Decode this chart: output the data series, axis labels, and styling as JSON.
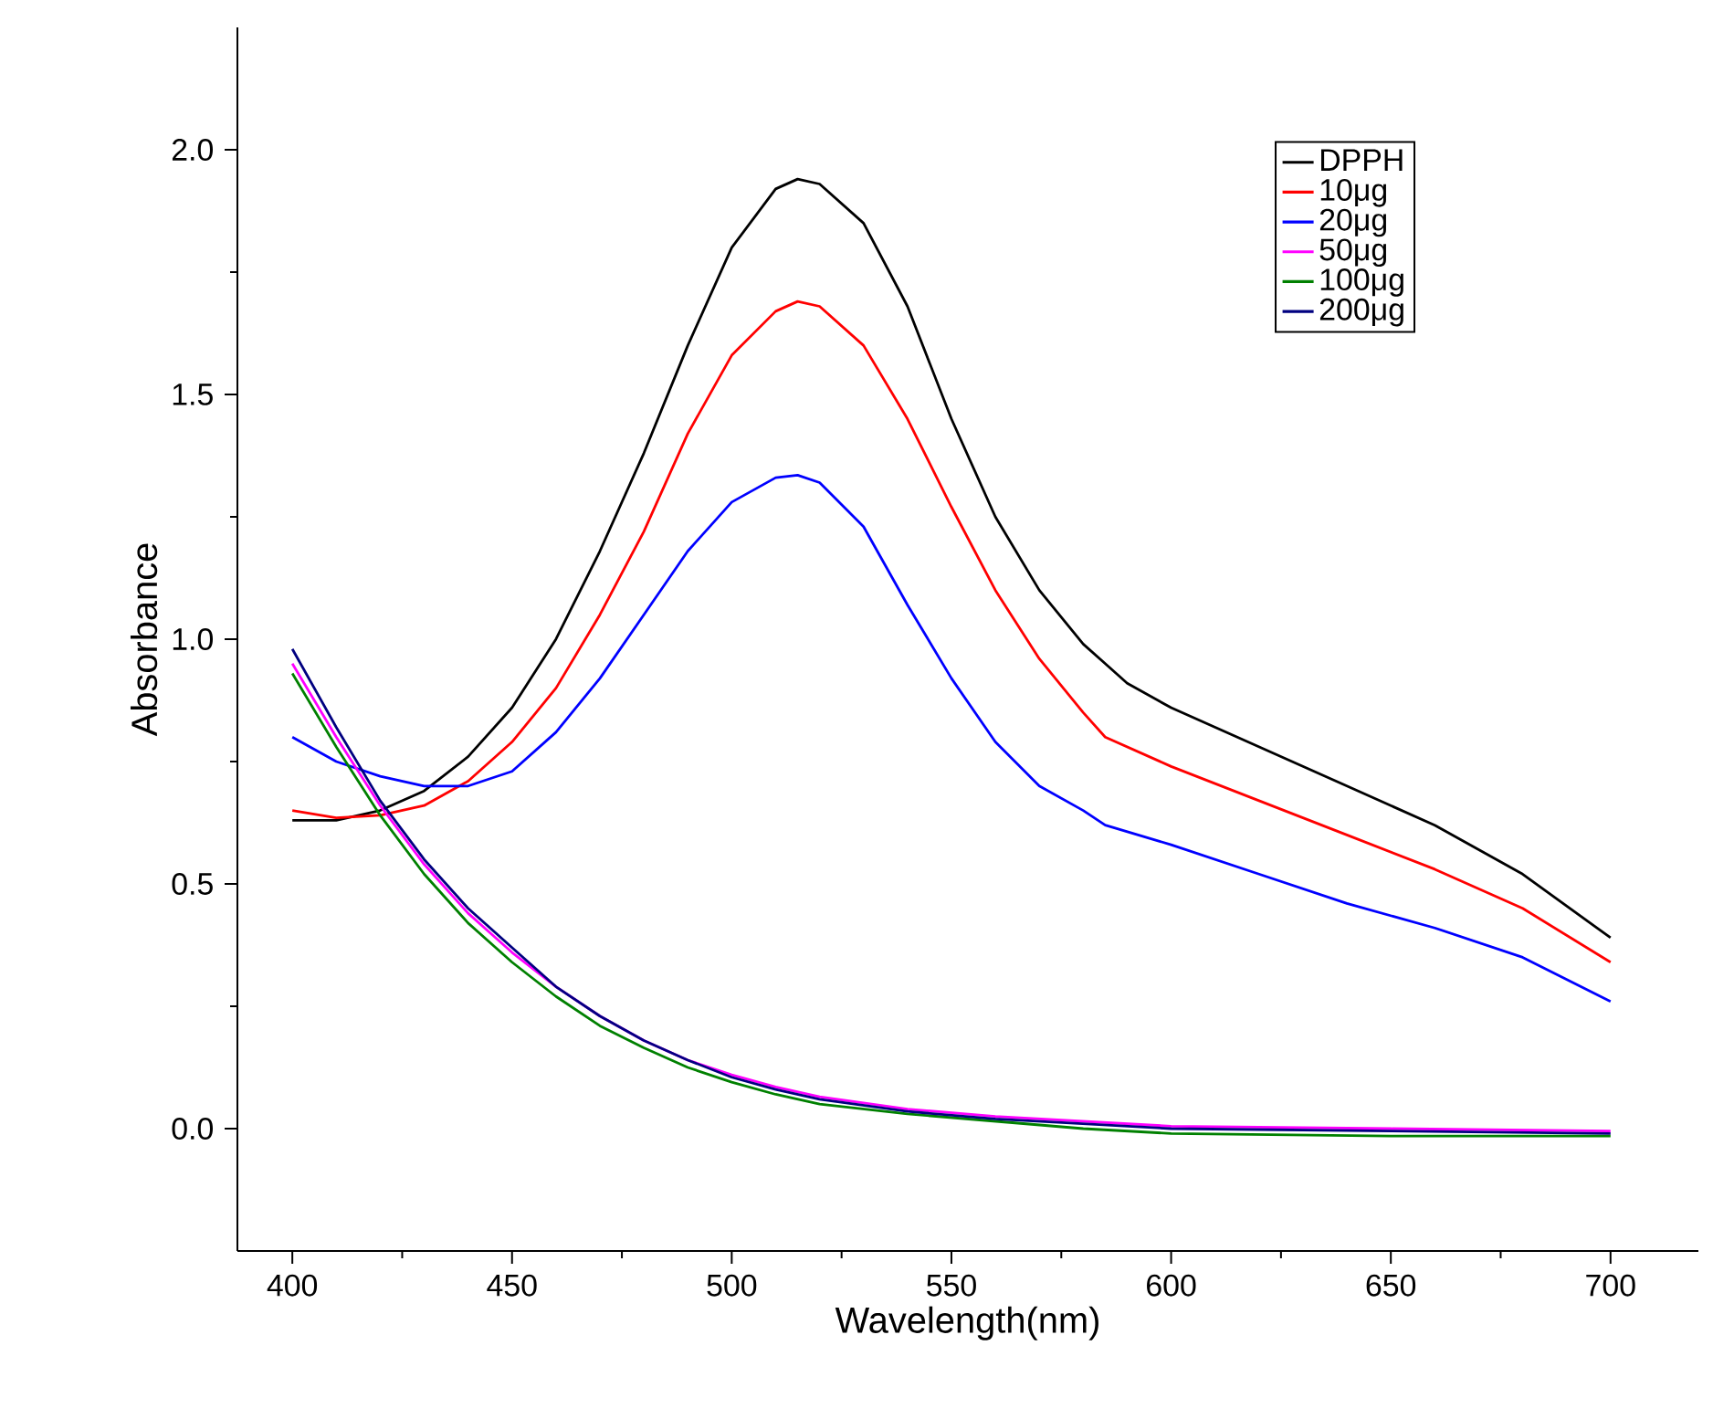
{
  "chart_data": {
    "type": "line",
    "xlabel": "Wavelength(nm)",
    "ylabel": "Absorbance",
    "xlim": [
      387.5,
      720
    ],
    "ylim": [
      -0.25,
      2.25
    ],
    "xticks": [
      400,
      450,
      500,
      550,
      600,
      650,
      700
    ],
    "yticks": [
      {
        "value": 0,
        "label": "0.0"
      },
      {
        "value": 0.5,
        "label": "0.5"
      },
      {
        "value": 1,
        "label": "1.0"
      },
      {
        "value": 1.5,
        "label": "1.5"
      },
      {
        "value": 2,
        "label": "2.0"
      }
    ],
    "legend": "top right",
    "grid": false,
    "marker": "none",
    "line_style": "solid",
    "series": [
      {
        "name": "DPPH",
        "color": "#000000",
        "x": [
          400,
          410,
          420,
          430,
          440,
          450,
          460,
          470,
          480,
          490,
          500,
          510,
          515,
          520,
          530,
          540,
          550,
          560,
          570,
          580,
          585,
          590,
          600,
          620,
          640,
          660,
          680,
          700
        ],
        "values": [
          0.63,
          0.63,
          0.65,
          0.69,
          0.76,
          0.86,
          1.0,
          1.18,
          1.38,
          1.6,
          1.8,
          1.92,
          1.94,
          1.93,
          1.85,
          1.68,
          1.45,
          1.25,
          1.1,
          0.99,
          0.95,
          0.91,
          0.86,
          0.78,
          0.7,
          0.62,
          0.52,
          0.39
        ]
      },
      {
        "name": "10μg",
        "color": "#ff0000",
        "x": [
          400,
          410,
          420,
          430,
          440,
          450,
          460,
          470,
          480,
          490,
          500,
          510,
          515,
          520,
          530,
          540,
          550,
          560,
          570,
          580,
          585,
          600,
          620,
          640,
          660,
          680,
          700
        ],
        "values": [
          0.65,
          0.635,
          0.64,
          0.66,
          0.71,
          0.79,
          0.9,
          1.05,
          1.22,
          1.42,
          1.58,
          1.67,
          1.69,
          1.68,
          1.6,
          1.45,
          1.27,
          1.1,
          0.96,
          0.85,
          0.8,
          0.74,
          0.67,
          0.6,
          0.53,
          0.45,
          0.34
        ]
      },
      {
        "name": "20μg",
        "color": "#0000ff",
        "x": [
          400,
          410,
          420,
          430,
          440,
          450,
          460,
          470,
          480,
          490,
          500,
          510,
          515,
          520,
          530,
          540,
          550,
          560,
          570,
          580,
          585,
          600,
          620,
          640,
          660,
          680,
          700
        ],
        "values": [
          0.8,
          0.75,
          0.72,
          0.7,
          0.7,
          0.73,
          0.81,
          0.92,
          1.05,
          1.18,
          1.28,
          1.33,
          1.335,
          1.32,
          1.23,
          1.07,
          0.92,
          0.79,
          0.7,
          0.65,
          0.62,
          0.58,
          0.52,
          0.46,
          0.41,
          0.35,
          0.26
        ]
      },
      {
        "name": "50μg",
        "color": "#ff00ff",
        "x": [
          400,
          410,
          420,
          430,
          440,
          450,
          460,
          470,
          480,
          490,
          500,
          510,
          520,
          540,
          560,
          580,
          600,
          650,
          700
        ],
        "values": [
          0.95,
          0.8,
          0.66,
          0.54,
          0.44,
          0.36,
          0.29,
          0.23,
          0.18,
          0.14,
          0.11,
          0.085,
          0.065,
          0.04,
          0.025,
          0.015,
          0.005,
          0.0,
          -0.005
        ]
      },
      {
        "name": "100μg",
        "color": "#008000",
        "x": [
          400,
          410,
          420,
          430,
          440,
          450,
          460,
          470,
          480,
          490,
          500,
          510,
          520,
          540,
          560,
          580,
          600,
          650,
          700
        ],
        "values": [
          0.93,
          0.78,
          0.64,
          0.52,
          0.42,
          0.34,
          0.27,
          0.21,
          0.165,
          0.125,
          0.095,
          0.07,
          0.05,
          0.03,
          0.015,
          0.0,
          -0.01,
          -0.015,
          -0.015
        ]
      },
      {
        "name": "200μg",
        "color": "#000080",
        "x": [
          400,
          410,
          420,
          430,
          440,
          450,
          460,
          470,
          480,
          490,
          500,
          510,
          520,
          540,
          560,
          580,
          600,
          650,
          700
        ],
        "values": [
          0.98,
          0.82,
          0.67,
          0.55,
          0.45,
          0.37,
          0.29,
          0.23,
          0.18,
          0.14,
          0.105,
          0.08,
          0.06,
          0.035,
          0.02,
          0.01,
          0.0,
          -0.005,
          -0.01
        ]
      }
    ]
  }
}
